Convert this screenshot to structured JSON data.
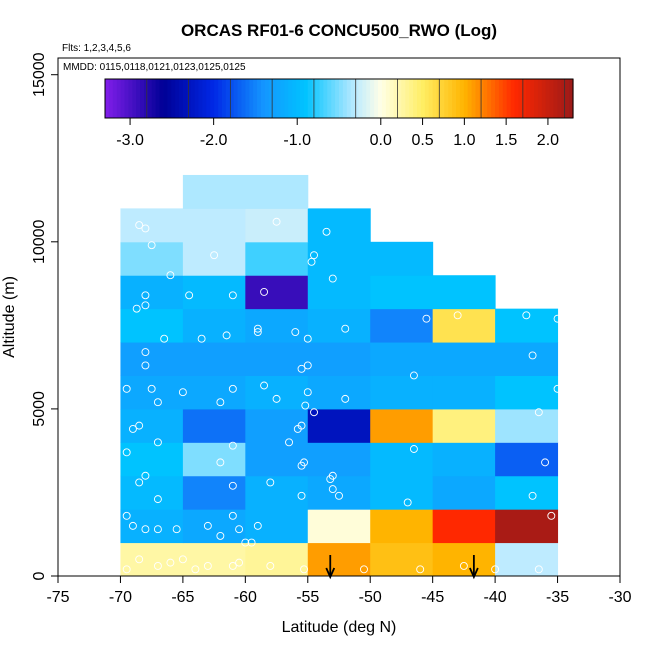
{
  "chart_data": {
    "type": "heatmap",
    "title": "ORCAS RF01-6 CONCU500_RWO (Log)",
    "annotations": [
      "Flts: 1,2,3,4,5,6",
      "MMDD: 0115,0118,0121,0123,0125,0125"
    ],
    "xlabel": "Latitude (deg N)",
    "ylabel": "Altitude (m)",
    "xlim": [
      -75,
      -30
    ],
    "ylim": [
      0,
      15500
    ],
    "xticks": [
      -75,
      -70,
      -65,
      -60,
      -55,
      -50,
      -45,
      -40,
      -35,
      -30
    ],
    "yticks": [
      0,
      5000,
      10000,
      15000
    ],
    "colorbar": {
      "min": -3.3,
      "max": 2.3,
      "ticks": [
        -3.0,
        -2.0,
        -1.0,
        0.0,
        0.5,
        1.0,
        1.5,
        2.0
      ],
      "tick_labels": [
        "-3.0",
        "-2.0",
        "-1.0",
        "0.0",
        "0.5",
        "1.0",
        "1.5",
        "2.0"
      ]
    },
    "cell_size": {
      "lat": 5,
      "alt": 1000
    },
    "cells": [
      {
        "lat": -70,
        "alt": 0,
        "value": 0.25
      },
      {
        "lat": -65,
        "alt": 0,
        "value": 0.25
      },
      {
        "lat": -60,
        "alt": 0,
        "value": 0.3
      },
      {
        "lat": -55,
        "alt": 0,
        "value": 1.1
      },
      {
        "lat": -50,
        "alt": 0,
        "value": 0.9
      },
      {
        "lat": -45,
        "alt": 0,
        "value": 1.0
      },
      {
        "lat": -40,
        "alt": 0,
        "value": -0.3
      },
      {
        "lat": -70,
        "alt": 1000,
        "value": -1.1
      },
      {
        "lat": -65,
        "alt": 1000,
        "value": -1.2
      },
      {
        "lat": -60,
        "alt": 1000,
        "value": -1.1
      },
      {
        "lat": -55,
        "alt": 1000,
        "value": 0.05
      },
      {
        "lat": -50,
        "alt": 1000,
        "value": 1.0
      },
      {
        "lat": -45,
        "alt": 1000,
        "value": 1.6
      },
      {
        "lat": -40,
        "alt": 1000,
        "value": 2.2
      },
      {
        "lat": -70,
        "alt": 2000,
        "value": -1.0
      },
      {
        "lat": -65,
        "alt": 2000,
        "value": -1.5
      },
      {
        "lat": -60,
        "alt": 2000,
        "value": -1.1
      },
      {
        "lat": -55,
        "alt": 2000,
        "value": -1.2
      },
      {
        "lat": -50,
        "alt": 2000,
        "value": -1.0
      },
      {
        "lat": -45,
        "alt": 2000,
        "value": -1.2
      },
      {
        "lat": -40,
        "alt": 2000,
        "value": -0.9
      },
      {
        "lat": -70,
        "alt": 3000,
        "value": -0.9
      },
      {
        "lat": -65,
        "alt": 3000,
        "value": -0.5
      },
      {
        "lat": -60,
        "alt": 3000,
        "value": -1.3
      },
      {
        "lat": -55,
        "alt": 3000,
        "value": -1.3
      },
      {
        "lat": -50,
        "alt": 3000,
        "value": -1.0
      },
      {
        "lat": -45,
        "alt": 3000,
        "value": -1.1
      },
      {
        "lat": -40,
        "alt": 3000,
        "value": -1.7
      },
      {
        "lat": -70,
        "alt": 4000,
        "value": -1.1
      },
      {
        "lat": -65,
        "alt": 4000,
        "value": -1.6
      },
      {
        "lat": -60,
        "alt": 4000,
        "value": -1.3
      },
      {
        "lat": -55,
        "alt": 4000,
        "value": -2.3
      },
      {
        "lat": -50,
        "alt": 4000,
        "value": 1.1
      },
      {
        "lat": -45,
        "alt": 4000,
        "value": 0.4
      },
      {
        "lat": -40,
        "alt": 4000,
        "value": -0.4
      },
      {
        "lat": -70,
        "alt": 5000,
        "value": -1.2
      },
      {
        "lat": -65,
        "alt": 5000,
        "value": -1.2
      },
      {
        "lat": -60,
        "alt": 5000,
        "value": -1.1
      },
      {
        "lat": -55,
        "alt": 5000,
        "value": -1.2
      },
      {
        "lat": -50,
        "alt": 5000,
        "value": -1.1
      },
      {
        "lat": -45,
        "alt": 5000,
        "value": -1.1
      },
      {
        "lat": -40,
        "alt": 5000,
        "value": -0.9
      },
      {
        "lat": -70,
        "alt": 6000,
        "value": -1.3
      },
      {
        "lat": -65,
        "alt": 6000,
        "value": -1.3
      },
      {
        "lat": -60,
        "alt": 6000,
        "value": -1.3
      },
      {
        "lat": -55,
        "alt": 6000,
        "value": -1.3
      },
      {
        "lat": -50,
        "alt": 6000,
        "value": -1.2
      },
      {
        "lat": -45,
        "alt": 6000,
        "value": -1.2
      },
      {
        "lat": -40,
        "alt": 6000,
        "value": -1.2
      },
      {
        "lat": -70,
        "alt": 7000,
        "value": -0.9
      },
      {
        "lat": -65,
        "alt": 7000,
        "value": -1.1
      },
      {
        "lat": -60,
        "alt": 7000,
        "value": -1.2
      },
      {
        "lat": -55,
        "alt": 7000,
        "value": -1.1
      },
      {
        "lat": -50,
        "alt": 7000,
        "value": -1.5
      },
      {
        "lat": -45,
        "alt": 7000,
        "value": 0.6
      },
      {
        "lat": -40,
        "alt": 7000,
        "value": -0.9
      },
      {
        "lat": -70,
        "alt": 8000,
        "value": -1.1
      },
      {
        "lat": -65,
        "alt": 8000,
        "value": -1.0
      },
      {
        "lat": -60,
        "alt": 8000,
        "value": -2.9
      },
      {
        "lat": -55,
        "alt": 8000,
        "value": -1.0
      },
      {
        "lat": -50,
        "alt": 8000,
        "value": -0.9
      },
      {
        "lat": -45,
        "alt": 8000,
        "value": -0.9
      },
      {
        "lat": -70,
        "alt": 9000,
        "value": -0.5
      },
      {
        "lat": -65,
        "alt": 9000,
        "value": -0.3
      },
      {
        "lat": -60,
        "alt": 9000,
        "value": -0.7
      },
      {
        "lat": -55,
        "alt": 9000,
        "value": -1.0
      },
      {
        "lat": -50,
        "alt": 9000,
        "value": -1.0
      },
      {
        "lat": -70,
        "alt": 10000,
        "value": -0.3
      },
      {
        "lat": -65,
        "alt": 10000,
        "value": -0.3
      },
      {
        "lat": -60,
        "alt": 10000,
        "value": -0.25
      },
      {
        "lat": -55,
        "alt": 10000,
        "value": -1.0
      },
      {
        "lat": -65,
        "alt": 11000,
        "value": -0.35
      },
      {
        "lat": -60,
        "alt": 11000,
        "value": -0.35
      }
    ],
    "points": [
      [
        -68.5,
        10500
      ],
      [
        -68,
        10400
      ],
      [
        -67.5,
        9900
      ],
      [
        -66,
        9000
      ],
      [
        -62.5,
        9600
      ],
      [
        -57.5,
        10600
      ],
      [
        -54.5,
        9600
      ],
      [
        -54.7,
        9400
      ],
      [
        -53.5,
        10300
      ],
      [
        -53,
        8900
      ],
      [
        -68,
        8400
      ],
      [
        -68,
        8100
      ],
      [
        -68.7,
        8000
      ],
      [
        -66.5,
        7100
      ],
      [
        -64.5,
        8400
      ],
      [
        -61,
        8400
      ],
      [
        -58.5,
        8500
      ],
      [
        -63.5,
        7100
      ],
      [
        -61.5,
        7200
      ],
      [
        -59,
        7400
      ],
      [
        -59,
        7300
      ],
      [
        -56,
        7300
      ],
      [
        -52,
        7400
      ],
      [
        -55,
        7100
      ],
      [
        -45.5,
        7700
      ],
      [
        -43,
        7800
      ],
      [
        -37.5,
        7800
      ],
      [
        -35,
        7700
      ],
      [
        -68,
        6700
      ],
      [
        -68,
        6300
      ],
      [
        -55,
        6300
      ],
      [
        -55.5,
        6200
      ],
      [
        -46.5,
        6000
      ],
      [
        -37,
        6600
      ],
      [
        -69.5,
        5600
      ],
      [
        -67.5,
        5600
      ],
      [
        -67,
        5200
      ],
      [
        -65,
        5500
      ],
      [
        -62,
        5200
      ],
      [
        -61,
        5600
      ],
      [
        -58.5,
        5700
      ],
      [
        -57.5,
        5300
      ],
      [
        -55,
        5500
      ],
      [
        -55.2,
        5100
      ],
      [
        -52,
        5300
      ],
      [
        -35,
        5600
      ],
      [
        -36.5,
        4900
      ],
      [
        -69,
        4400
      ],
      [
        -68.5,
        4500
      ],
      [
        -67,
        4000
      ],
      [
        -61,
        3900
      ],
      [
        -56.5,
        4000
      ],
      [
        -55.5,
        4500
      ],
      [
        -55.8,
        4400
      ],
      [
        -54.5,
        4900
      ],
      [
        -69.5,
        3700
      ],
      [
        -68,
        3000
      ],
      [
        -68.5,
        2800
      ],
      [
        -67,
        2300
      ],
      [
        -62,
        3400
      ],
      [
        -61,
        2700
      ],
      [
        -58,
        2800
      ],
      [
        -55.5,
        3300
      ],
      [
        -55.3,
        3400
      ],
      [
        -53,
        3000
      ],
      [
        -53.2,
        2900
      ],
      [
        -53,
        2600
      ],
      [
        -52.5,
        2400
      ],
      [
        -55.5,
        2400
      ],
      [
        -46.5,
        3800
      ],
      [
        -47,
        2200
      ],
      [
        -36,
        3400
      ],
      [
        -37,
        2400
      ],
      [
        -69.5,
        1800
      ],
      [
        -69,
        1500
      ],
      [
        -68,
        1400
      ],
      [
        -67,
        1400
      ],
      [
        -65.5,
        1400
      ],
      [
        -63,
        1500
      ],
      [
        -62,
        1200
      ],
      [
        -61,
        1800
      ],
      [
        -60.5,
        1400
      ],
      [
        -59,
        1500
      ],
      [
        -60,
        1000
      ],
      [
        -59.5,
        1000
      ],
      [
        -35.5,
        1800
      ],
      [
        -69.5,
        200
      ],
      [
        -68.5,
        500
      ],
      [
        -67,
        300
      ],
      [
        -66,
        400
      ],
      [
        -65,
        500
      ],
      [
        -64,
        200
      ],
      [
        -63,
        300
      ],
      [
        -61,
        300
      ],
      [
        -60.5,
        400
      ],
      [
        -58,
        300
      ],
      [
        -55.3,
        200
      ],
      [
        -50.5,
        200
      ],
      [
        -46,
        200
      ],
      [
        -42.5,
        300
      ],
      [
        -40,
        200
      ],
      [
        -36.5,
        200
      ]
    ],
    "arrows_at_lat": [
      -53.2,
      -41.7
    ]
  }
}
